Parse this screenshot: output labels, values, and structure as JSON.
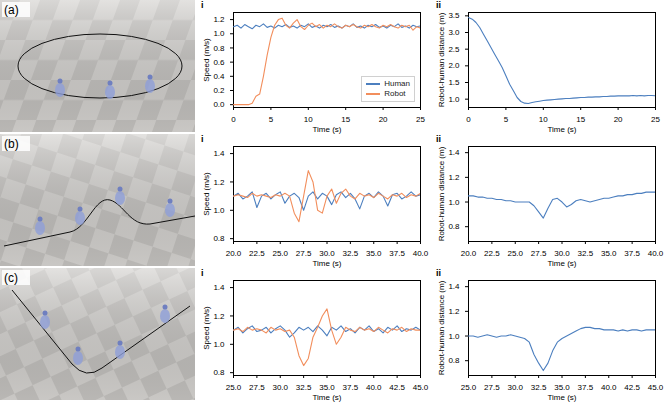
{
  "chart_data": [
    {
      "type": "line",
      "panel": "(a)",
      "title": "i",
      "x_label": "Time (s)",
      "y_label": "Speed (m/s)",
      "x": [
        0,
        0.5,
        1,
        1.5,
        2,
        2.5,
        3,
        3.5,
        4,
        4.5,
        5,
        5.5,
        6,
        6.5,
        7,
        7.5,
        8,
        8.5,
        9,
        9.5,
        10,
        10.5,
        11,
        11.5,
        12,
        12.5,
        13,
        13.5,
        14,
        14.5,
        15,
        15.5,
        16,
        16.5,
        17,
        17.5,
        18,
        18.5,
        19,
        19.5,
        20,
        20.5,
        21,
        21.5,
        22,
        22.5,
        23,
        23.5,
        24,
        24.5,
        25
      ],
      "series": [
        {
          "name": "Human",
          "color": "#4c7fbf",
          "values": [
            1.1,
            1.12,
            1.08,
            1.13,
            1.1,
            1.07,
            1.12,
            1.1,
            1.14,
            1.09,
            1.11,
            1.08,
            1.12,
            1.1,
            1.13,
            1.09,
            1.11,
            1.08,
            1.12,
            1.1,
            1.14,
            1.09,
            1.11,
            1.08,
            1.12,
            1.1,
            1.13,
            1.09,
            1.11,
            1.08,
            1.12,
            1.1,
            1.14,
            1.09,
            1.11,
            1.08,
            1.12,
            1.1,
            1.13,
            1.09,
            1.11,
            1.08,
            1.12,
            1.1,
            1.14,
            1.09,
            1.11,
            1.08,
            1.12,
            1.1,
            1.11
          ]
        },
        {
          "name": "Robot",
          "color": "#f28e5c",
          "values": [
            0,
            0,
            0,
            0,
            0,
            0.02,
            0.12,
            0.15,
            0.4,
            0.7,
            0.95,
            1.12,
            1.2,
            1.22,
            1.12,
            1.08,
            1.15,
            1.2,
            1.1,
            1.06,
            1.12,
            1.15,
            1.1,
            1.13,
            1.08,
            1.12,
            1.1,
            1.14,
            1.1,
            1.08,
            1.12,
            1.1,
            1.13,
            1.1,
            1.08,
            1.12,
            1.1,
            1.13,
            1.1,
            1.08,
            1.12,
            1.1,
            1.13,
            1.1,
            1.08,
            1.12,
            1.1,
            1.12,
            1.05,
            1.1,
            1.08
          ]
        }
      ],
      "xlim": [
        0,
        25
      ],
      "xticks": [
        0,
        5,
        10,
        15,
        20,
        25
      ],
      "ylim": [
        -0.04,
        1.3
      ],
      "yticks": [
        {
          "value": 0,
          "label": "0.0"
        },
        0.2,
        0.4,
        0.6,
        0.8,
        {
          "value": 1,
          "label": "1.0"
        },
        1.2
      ],
      "grid": false,
      "legend": "lower right"
    },
    {
      "type": "line",
      "title": "ii",
      "x_label": "Time (s)",
      "y_label": "Robot-human distance (m)",
      "x": [
        0,
        0.5,
        1,
        1.5,
        2,
        2.5,
        3,
        3.5,
        4,
        4.5,
        5,
        5.5,
        6,
        6.5,
        7,
        7.5,
        8,
        8.5,
        9,
        9.5,
        10,
        10.5,
        11,
        11.5,
        12,
        12.5,
        13,
        13.5,
        14,
        14.5,
        15,
        15.5,
        16,
        16.5,
        17,
        17.5,
        18,
        18.5,
        19,
        19.5,
        20,
        20.5,
        21,
        21.5,
        22,
        22.5,
        23,
        23.5,
        24,
        24.5,
        25
      ],
      "color": "#4c7fbf",
      "values": [
        3.45,
        3.4,
        3.3,
        3.15,
        2.95,
        2.75,
        2.55,
        2.35,
        2.15,
        1.95,
        1.7,
        1.45,
        1.25,
        1.05,
        0.93,
        0.88,
        0.87,
        0.9,
        0.92,
        0.94,
        0.96,
        0.97,
        0.98,
        0.99,
        1.0,
        1.01,
        1.02,
        1.02,
        1.03,
        1.04,
        1.05,
        1.05,
        1.06,
        1.06,
        1.07,
        1.07,
        1.08,
        1.08,
        1.09,
        1.09,
        1.1,
        1.1,
        1.1,
        1.1,
        1.11,
        1.1,
        1.11,
        1.1,
        1.11,
        1.11,
        1.1
      ],
      "xlim": [
        0,
        25
      ],
      "xticks": [
        0,
        5,
        10,
        15,
        20,
        25
      ],
      "ylim": [
        0.75,
        3.6
      ],
      "yticks": [
        {
          "value": 1,
          "label": "1.0"
        },
        1.5,
        {
          "value": 2,
          "label": "2.0"
        },
        2.5,
        {
          "value": 3,
          "label": "3.0"
        },
        3.5
      ],
      "grid": false
    },
    {
      "type": "line",
      "panel": "(b)",
      "title": "i",
      "x_label": "Time (s)",
      "y_label": "Speed (m/s)",
      "x": [
        20,
        20.5,
        21,
        21.5,
        22,
        22.5,
        23,
        23.5,
        24,
        24.5,
        25,
        25.5,
        26,
        26.5,
        27,
        27.5,
        28,
        28.5,
        29,
        29.5,
        30,
        30.5,
        31,
        31.5,
        32,
        32.5,
        33,
        33.5,
        34,
        34.5,
        35,
        35.5,
        36,
        36.5,
        37,
        37.5,
        38,
        38.5,
        39,
        39.5,
        40
      ],
      "series": [
        {
          "name": "Human",
          "color": "#4c7fbf",
          "values": [
            1.1,
            1.12,
            1.08,
            1.1,
            1.13,
            1.02,
            1.1,
            1.12,
            1.08,
            1.11,
            1.13,
            1.05,
            1.1,
            1.12,
            1.09,
            1.0,
            1.1,
            1.13,
            1.08,
            1.12,
            1.1,
            1.04,
            1.11,
            1.13,
            1.09,
            1.12,
            1.08,
            1.01,
            1.1,
            1.12,
            1.09,
            1.13,
            1.1,
            1.03,
            1.11,
            1.12,
            1.08,
            1.1,
            1.13,
            1.1,
            1.11
          ]
        },
        {
          "name": "Robot",
          "color": "#f28e5c",
          "values": [
            1.1,
            1.11,
            1.1,
            1.09,
            1.12,
            1.1,
            1.11,
            1.1,
            1.09,
            1.11,
            1.1,
            1.12,
            1.1,
            0.98,
            0.92,
            1.1,
            1.28,
            1.2,
            1.0,
            0.98,
            1.1,
            1.15,
            1.05,
            1.12,
            1.15,
            1.1,
            1.08,
            1.12,
            1.1,
            1.11,
            1.09,
            1.12,
            1.1,
            1.08,
            1.11,
            1.1,
            1.12,
            1.09,
            1.11,
            1.1,
            1.12
          ]
        }
      ],
      "xlim": [
        20,
        40
      ],
      "xticks": [
        {
          "value": 20,
          "label": "20.0"
        },
        22.5,
        {
          "value": 25,
          "label": "25.0"
        },
        27.5,
        {
          "value": 30,
          "label": "30.0"
        },
        32.5,
        {
          "value": 35,
          "label": "35.0"
        },
        37.5,
        {
          "value": 40,
          "label": "40.0"
        }
      ],
      "ylim": [
        0.78,
        1.45
      ],
      "yticks": [
        0.8,
        {
          "value": 1,
          "label": "1.0"
        },
        1.2,
        1.4
      ],
      "grid": false
    },
    {
      "type": "line",
      "title": "ii",
      "x_label": "Time (s)",
      "y_label": "Robot-human distance (m)",
      "x": [
        20,
        20.5,
        21,
        21.5,
        22,
        22.5,
        23,
        23.5,
        24,
        24.5,
        25,
        25.5,
        26,
        26.5,
        27,
        27.5,
        28,
        28.5,
        29,
        29.5,
        30,
        30.5,
        31,
        31.5,
        32,
        32.5,
        33,
        33.5,
        34,
        34.5,
        35,
        35.5,
        36,
        36.5,
        37,
        37.5,
        38,
        38.5,
        39,
        39.5,
        40
      ],
      "color": "#4c7fbf",
      "values": [
        1.05,
        1.05,
        1.04,
        1.04,
        1.03,
        1.03,
        1.02,
        1.02,
        1.01,
        1.01,
        1.0,
        1.0,
        1.0,
        1.0,
        0.97,
        0.92,
        0.87,
        0.95,
        1.02,
        1.03,
        1.0,
        0.96,
        0.98,
        1.01,
        1.02,
        1.01,
        1.0,
        1.01,
        1.02,
        1.03,
        1.03,
        1.04,
        1.05,
        1.05,
        1.06,
        1.06,
        1.07,
        1.07,
        1.08,
        1.08,
        1.08
      ],
      "xlim": [
        20,
        40
      ],
      "xticks": [
        {
          "value": 20,
          "label": "20.0"
        },
        22.5,
        {
          "value": 25,
          "label": "25.0"
        },
        27.5,
        {
          "value": 30,
          "label": "30.0"
        },
        32.5,
        {
          "value": 35,
          "label": "35.0"
        },
        37.5,
        {
          "value": 40,
          "label": "40.0"
        }
      ],
      "ylim": [
        0.68,
        1.45
      ],
      "yticks": [
        0.8,
        {
          "value": 1,
          "label": "1.0"
        },
        1.2,
        1.4
      ],
      "grid": false
    },
    {
      "type": "line",
      "panel": "(c)",
      "title": "i",
      "x_label": "Time (s)",
      "y_label": "Speed (m/s)",
      "x": [
        25,
        25.5,
        26,
        26.5,
        27,
        27.5,
        28,
        28.5,
        29,
        29.5,
        30,
        30.5,
        31,
        31.5,
        32,
        32.5,
        33,
        33.5,
        34,
        34.5,
        35,
        35.5,
        36,
        36.5,
        37,
        37.5,
        38,
        38.5,
        39,
        39.5,
        40,
        40.5,
        41,
        41.5,
        42,
        42.5,
        43,
        43.5,
        44,
        44.5,
        45
      ],
      "series": [
        {
          "name": "Human",
          "color": "#4c7fbf",
          "values": [
            1.1,
            1.12,
            1.08,
            1.11,
            1.13,
            1.09,
            1.1,
            1.12,
            1.08,
            1.11,
            1.13,
            1.1,
            1.05,
            1.08,
            1.12,
            1.1,
            1.12,
            1.09,
            1.13,
            1.1,
            1.06,
            1.12,
            1.1,
            1.13,
            1.09,
            1.11,
            1.08,
            1.12,
            1.1,
            1.13,
            1.09,
            1.11,
            1.08,
            1.12,
            1.1,
            1.13,
            1.09,
            1.11,
            1.1,
            1.12,
            1.1
          ]
        },
        {
          "name": "Robot",
          "color": "#f28e5c",
          "values": [
            1.1,
            1.11,
            1.09,
            1.12,
            1.1,
            1.11,
            1.1,
            1.08,
            1.12,
            1.1,
            1.11,
            1.09,
            1.1,
            1.05,
            0.92,
            0.85,
            0.9,
            1.05,
            1.12,
            1.2,
            1.25,
            1.1,
            1.0,
            1.05,
            1.12,
            1.1,
            1.09,
            1.12,
            1.1,
            1.11,
            1.09,
            1.12,
            1.1,
            1.08,
            1.11,
            1.1,
            1.12,
            1.09,
            1.11,
            1.1,
            1.1
          ]
        }
      ],
      "xlim": [
        25,
        45
      ],
      "xticks": [
        {
          "value": 25,
          "label": "25.0"
        },
        27.5,
        {
          "value": 30,
          "label": "30.0"
        },
        32.5,
        {
          "value": 35,
          "label": "35.0"
        },
        37.5,
        {
          "value": 40,
          "label": "40.0"
        },
        42.5,
        {
          "value": 45,
          "label": "45.0"
        }
      ],
      "ylim": [
        0.78,
        1.45
      ],
      "yticks": [
        0.8,
        {
          "value": 1,
          "label": "1.0"
        },
        1.2,
        1.4
      ],
      "grid": false
    },
    {
      "type": "line",
      "title": "ii",
      "x_label": "Time (s)",
      "y_label": "Robot-human distance (m)",
      "x": [
        25,
        25.5,
        26,
        26.5,
        27,
        27.5,
        28,
        28.5,
        29,
        29.5,
        30,
        30.5,
        31,
        31.5,
        32,
        32.5,
        33,
        33.5,
        34,
        34.5,
        35,
        35.5,
        36,
        36.5,
        37,
        37.5,
        38,
        38.5,
        39,
        39.5,
        40,
        40.5,
        41,
        41.5,
        42,
        42.5,
        43,
        43.5,
        44,
        44.5,
        45
      ],
      "color": "#4c7fbf",
      "values": [
        1.0,
        1.0,
        0.99,
        1.0,
        1.01,
        1.0,
        0.99,
        1.0,
        1.0,
        1.01,
        1.0,
        0.99,
        0.98,
        0.95,
        0.85,
        0.78,
        0.72,
        0.78,
        0.88,
        0.95,
        0.98,
        1.0,
        1.02,
        1.04,
        1.06,
        1.07,
        1.07,
        1.06,
        1.06,
        1.05,
        1.05,
        1.05,
        1.04,
        1.05,
        1.04,
        1.05,
        1.05,
        1.04,
        1.05,
        1.05,
        1.05
      ],
      "xlim": [
        25,
        45
      ],
      "xticks": [
        {
          "value": 25,
          "label": "25.0"
        },
        27.5,
        {
          "value": 30,
          "label": "30.0"
        },
        32.5,
        {
          "value": 35,
          "label": "35.0"
        },
        37.5,
        {
          "value": 40,
          "label": "40.0"
        },
        42.5,
        {
          "value": 45,
          "label": "45.0"
        }
      ],
      "ylim": [
        0.68,
        1.45
      ],
      "yticks": [
        0.8,
        {
          "value": 1,
          "label": "1.0"
        },
        1.2,
        1.4
      ],
      "grid": false
    }
  ]
}
